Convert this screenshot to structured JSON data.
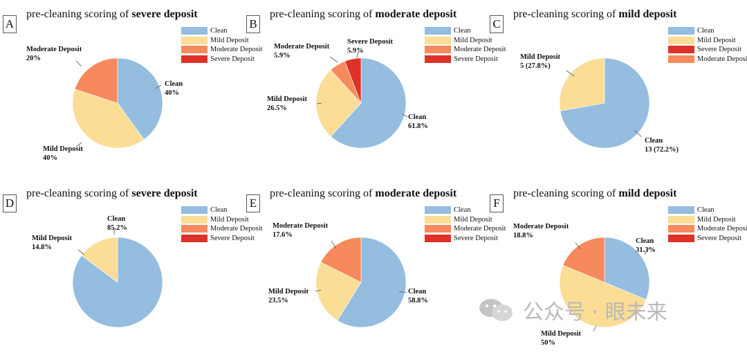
{
  "colors": {
    "Clean": "#94bde0",
    "Mild Deposit": "#fbdd96",
    "Moderate Deposit": "#f68a5c",
    "Severe Deposit": "#dd3227"
  },
  "panels": [
    {
      "letter": "A",
      "title_prefix": "pre-cleaning scoring of ",
      "title_bold": "severe deposit",
      "legend": [
        "Clean",
        "Mild Deposit",
        "Moderate Deposit",
        "Severe Deposit"
      ]
    },
    {
      "letter": "B",
      "title_prefix": "pre-cleaning scoring of ",
      "title_bold": "moderate deposit",
      "legend": [
        "Clean",
        "Mild Deposit",
        "Moderate Deposit",
        "Severe Deposit"
      ]
    },
    {
      "letter": "C",
      "title_prefix": "pre-cleaning scoring of ",
      "title_bold": "mild deposit",
      "legend": [
        "Clean",
        "Mild Deposit",
        "Severe Deposit",
        "Moderate Deposit"
      ]
    },
    {
      "letter": "D",
      "title_prefix": "pre-cleaning scoring of ",
      "title_bold": "severe deposit",
      "legend": [
        "Clean",
        "Mild Deposit",
        "Moderate Deposit",
        "Severe Deposit"
      ]
    },
    {
      "letter": "E",
      "title_prefix": "pre-cleaning scoring of ",
      "title_bold": "moderate deposit",
      "legend": [
        "Clean",
        "Mild Deposit",
        "Moderate Deposit",
        "Severe Deposit"
      ]
    },
    {
      "letter": "F",
      "title_prefix": "pre-cleaning scoring of ",
      "title_bold": "mild deposit",
      "legend": [
        "Clean",
        "Mild Deposit",
        "Moderate Deposit",
        "Severe Deposit"
      ]
    }
  ],
  "chart_data": [
    {
      "type": "pie",
      "title": "pre-cleaning scoring of severe deposit",
      "slices": [
        {
          "label": "Clean",
          "value": 40,
          "text": "40%"
        },
        {
          "label": "Mild Deposit",
          "value": 40,
          "text": "40%"
        },
        {
          "label": "Moderate Deposit",
          "value": 20,
          "text": "20%"
        }
      ]
    },
    {
      "type": "pie",
      "title": "pre-cleaning scoring of moderate deposit",
      "slices": [
        {
          "label": "Clean",
          "value": 61.8,
          "text": "61.8%"
        },
        {
          "label": "Mild Deposit",
          "value": 26.5,
          "text": "26.5%"
        },
        {
          "label": "Moderate Deposit",
          "value": 5.9,
          "text": "5.9%"
        },
        {
          "label": "Severe Deposit",
          "value": 5.9,
          "text": "5.9%"
        }
      ]
    },
    {
      "type": "pie",
      "title": "pre-cleaning scoring of mild deposit",
      "slices": [
        {
          "label": "Clean",
          "value": 72.2,
          "text": "13 (72.2%)"
        },
        {
          "label": "Mild Deposit",
          "value": 27.8,
          "text": "5 (27.8%)"
        }
      ]
    },
    {
      "type": "pie",
      "title": "pre-cleaning scoring of severe deposit",
      "slices": [
        {
          "label": "Clean",
          "value": 85.2,
          "text": "85.2%"
        },
        {
          "label": "Mild Deposit",
          "value": 14.8,
          "text": "14.8%"
        }
      ]
    },
    {
      "type": "pie",
      "title": "pre-cleaning scoring of moderate deposit",
      "slices": [
        {
          "label": "Clean",
          "value": 58.8,
          "text": "58.8%"
        },
        {
          "label": "Mild Deposit",
          "value": 23.5,
          "text": "23.5%"
        },
        {
          "label": "Moderate Deposit",
          "value": 17.6,
          "text": "17.6%"
        }
      ]
    },
    {
      "type": "pie",
      "title": "pre-cleaning scoring of mild deposit",
      "slices": [
        {
          "label": "Clean",
          "value": 31.3,
          "text": "31.3%"
        },
        {
          "label": "Mild Deposit",
          "value": 50,
          "text": "50%"
        },
        {
          "label": "Moderate Deposit",
          "value": 18.8,
          "text": "18.8%"
        }
      ]
    }
  ],
  "watermark": {
    "text": "公众号 · 眼未来",
    "icon": "wechat-icon"
  }
}
